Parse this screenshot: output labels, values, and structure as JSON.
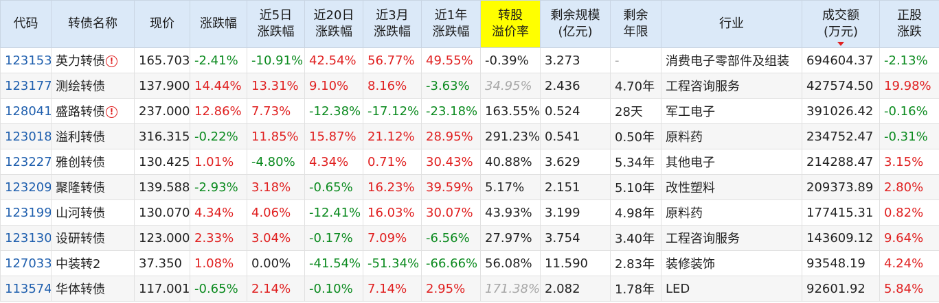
{
  "headers": [
    {
      "l1": "代码",
      "l2": ""
    },
    {
      "l1": "转债名称",
      "l2": ""
    },
    {
      "l1": "现价",
      "l2": ""
    },
    {
      "l1": "涨跌幅",
      "l2": ""
    },
    {
      "l1": "近5日",
      "l2": "涨跌幅"
    },
    {
      "l1": "近20日",
      "l2": "涨跌幅"
    },
    {
      "l1": "近3月",
      "l2": "涨跌幅"
    },
    {
      "l1": "近1年",
      "l2": "涨跌幅"
    },
    {
      "l1": "转股",
      "l2": "溢价率"
    },
    {
      "l1": "剩余规模",
      "l2": "(亿元)"
    },
    {
      "l1": "剩余",
      "l2": "年限"
    },
    {
      "l1": "行业",
      "l2": ""
    },
    {
      "l1": "成交额",
      "l2": "(万元)"
    },
    {
      "l1": "正股",
      "l2": "涨跌"
    }
  ],
  "highlight_color": "#ffff00",
  "up_color": "#e02020",
  "down_color": "#0a8a1e",
  "rows": [
    {
      "code": "123153",
      "name": "英力转债",
      "warn": true,
      "price": "165.703",
      "chg": "-2.41%",
      "d5": "-10.91%",
      "d20": "42.54%",
      "m3": "56.77%",
      "y1": "49.55%",
      "prem": "-0.39%",
      "scale": "3.273",
      "years": "-",
      "industry": "消费电子零部件及组装",
      "turnover": "694604.37",
      "stock_chg": "-2.13%"
    },
    {
      "code": "123177",
      "name": "测绘转债",
      "warn": false,
      "price": "137.900",
      "chg": "14.44%",
      "d5": "13.31%",
      "d20": "9.10%",
      "m3": "8.16%",
      "y1": "-3.63%",
      "prem": "34.95%",
      "scale": "2.436",
      "years": "4.70年",
      "industry": "工程咨询服务",
      "turnover": "427574.50",
      "stock_chg": "19.98%"
    },
    {
      "code": "128041",
      "name": "盛路转债",
      "warn": true,
      "price": "237.000",
      "chg": "12.86%",
      "d5": "7.73%",
      "d20": "-12.38%",
      "m3": "-17.12%",
      "y1": "-23.18%",
      "prem": "163.55%",
      "scale": "0.524",
      "years": "28天",
      "industry": "军工电子",
      "turnover": "391026.42",
      "stock_chg": "-0.16%"
    },
    {
      "code": "123018",
      "name": "溢利转债",
      "warn": false,
      "price": "316.315",
      "chg": "-0.22%",
      "d5": "11.85%",
      "d20": "15.87%",
      "m3": "21.12%",
      "y1": "28.95%",
      "prem": "291.23%",
      "scale": "0.541",
      "years": "0.50年",
      "industry": "原料药",
      "turnover": "234752.47",
      "stock_chg": "-0.31%"
    },
    {
      "code": "123227",
      "name": "雅创转债",
      "warn": false,
      "price": "130.425",
      "chg": "1.01%",
      "d5": "-4.80%",
      "d20": "4.34%",
      "m3": "0.71%",
      "y1": "30.43%",
      "prem": "40.88%",
      "scale": "3.629",
      "years": "5.34年",
      "industry": "其他电子",
      "turnover": "214288.47",
      "stock_chg": "3.15%"
    },
    {
      "code": "123209",
      "name": "聚隆转债",
      "warn": false,
      "price": "139.588",
      "chg": "-2.93%",
      "d5": "3.18%",
      "d20": "-0.65%",
      "m3": "16.23%",
      "y1": "39.59%",
      "prem": "5.17%",
      "scale": "2.151",
      "years": "5.10年",
      "industry": "改性塑料",
      "turnover": "209373.89",
      "stock_chg": "2.80%"
    },
    {
      "code": "123199",
      "name": "山河转债",
      "warn": false,
      "price": "130.070",
      "chg": "4.34%",
      "d5": "4.06%",
      "d20": "-12.41%",
      "m3": "16.03%",
      "y1": "30.07%",
      "prem": "43.93%",
      "scale": "3.199",
      "years": "4.98年",
      "industry": "原料药",
      "turnover": "177415.31",
      "stock_chg": "0.82%"
    },
    {
      "code": "123130",
      "name": "设研转债",
      "warn": false,
      "price": "123.000",
      "chg": "2.33%",
      "d5": "3.04%",
      "d20": "-0.17%",
      "m3": "7.09%",
      "y1": "-6.56%",
      "prem": "27.97%",
      "scale": "3.754",
      "years": "3.40年",
      "industry": "工程咨询服务",
      "turnover": "143609.12",
      "stock_chg": "9.64%"
    },
    {
      "code": "127033",
      "name": "中装转2",
      "warn": false,
      "price": "37.350",
      "chg": "1.08%",
      "d5": "0.00%",
      "d20": "-41.54%",
      "m3": "-51.34%",
      "y1": "-66.66%",
      "prem": "56.08%",
      "scale": "11.590",
      "years": "2.83年",
      "industry": "装修装饰",
      "turnover": "93548.19",
      "stock_chg": "4.24%"
    },
    {
      "code": "113574",
      "name": "华体转债",
      "warn": false,
      "price": "117.001",
      "chg": "-0.65%",
      "d5": "2.14%",
      "d20": "-0.10%",
      "m3": "7.14%",
      "y1": "2.95%",
      "prem": "171.38%",
      "scale": "2.082",
      "years": "1.78年",
      "industry": "LED",
      "turnover": "92601.92",
      "stock_chg": "5.84%"
    }
  ],
  "muted_premium_rows": [
    1,
    9
  ]
}
